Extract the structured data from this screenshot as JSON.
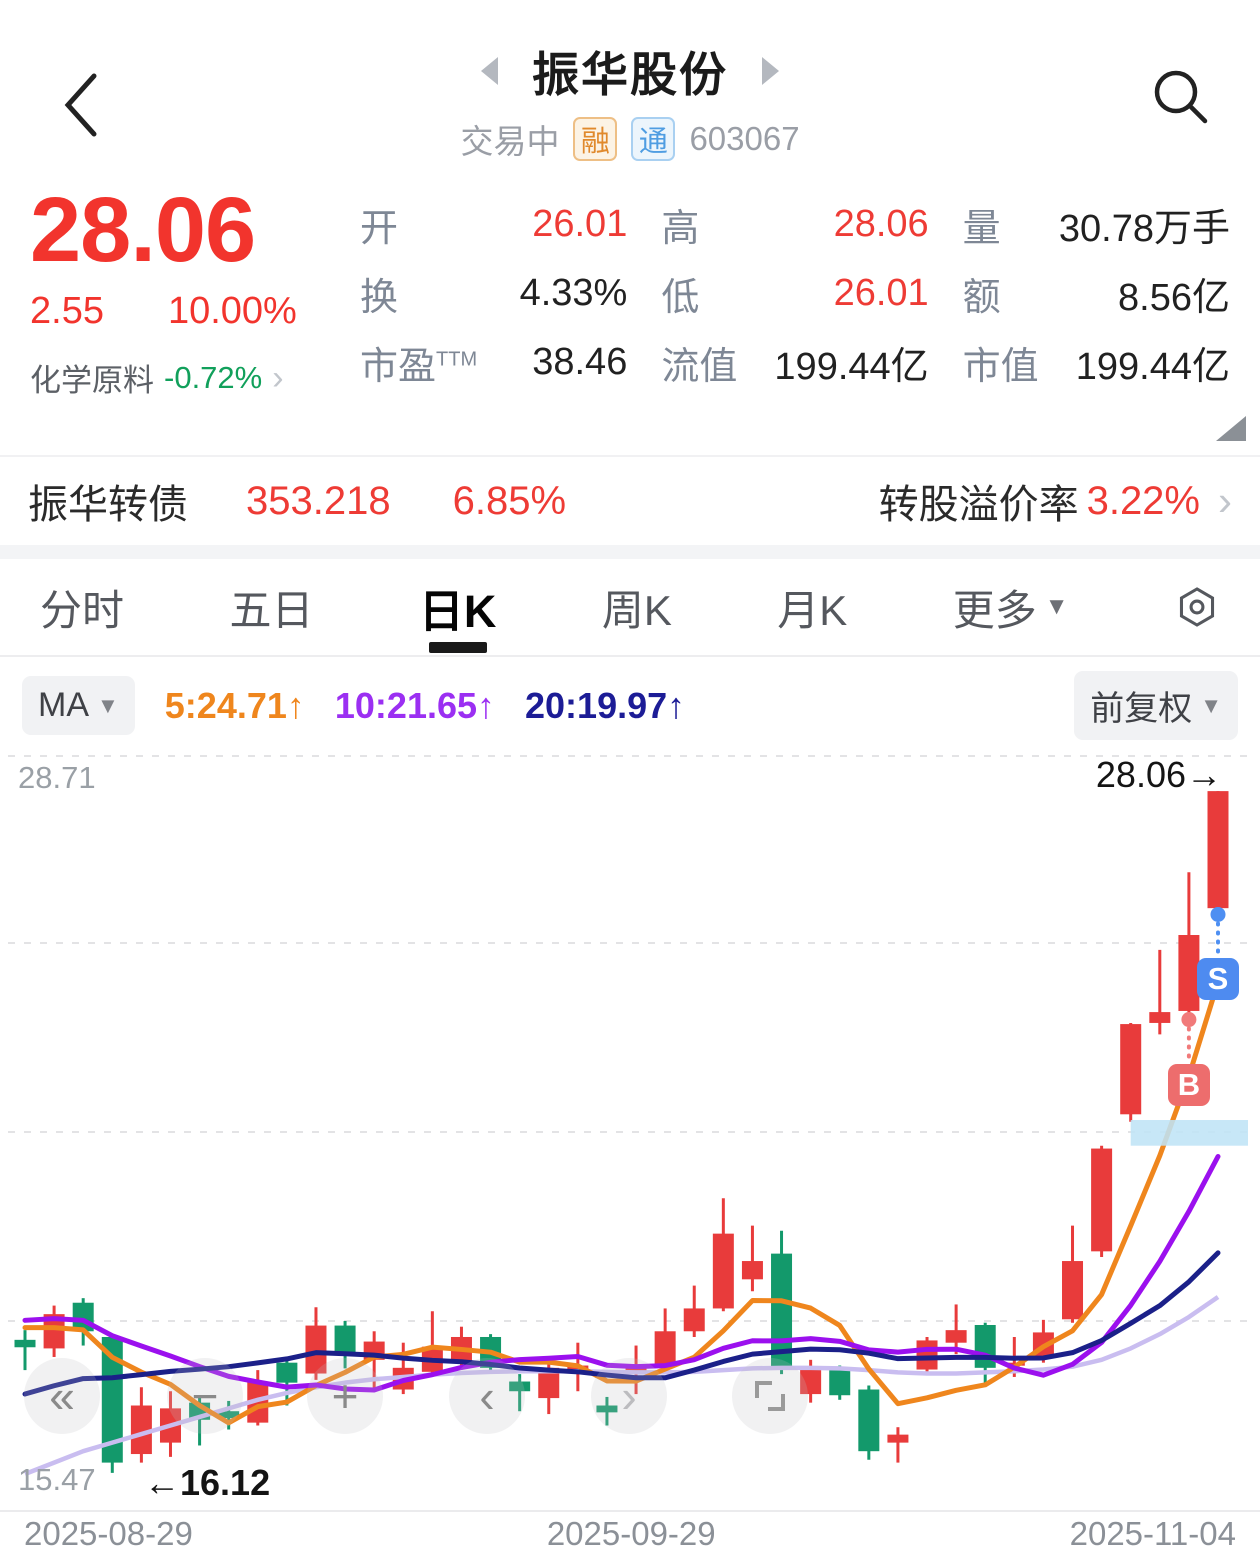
{
  "header": {
    "title": "振华股份",
    "status": "交易中",
    "badge_rong": "融",
    "badge_tong": "通",
    "code": "603067"
  },
  "quote": {
    "price": "28.06",
    "change": "2.55",
    "change_pct": "10.00%",
    "sector": "化学原料",
    "sector_change": "-0.72%",
    "up_color": "#f2342d",
    "down_color": "#11a05b"
  },
  "stats": [
    {
      "label": "开",
      "value": "26.01",
      "color": "red"
    },
    {
      "label": "高",
      "value": "28.06",
      "color": "red"
    },
    {
      "label": "量",
      "value": "30.78万手",
      "color": "black"
    },
    {
      "label": "换",
      "value": "4.33%",
      "color": "black"
    },
    {
      "label": "低",
      "value": "26.01",
      "color": "red"
    },
    {
      "label": "额",
      "value": "8.56亿",
      "color": "black"
    },
    {
      "label": "市盈",
      "sup": "TTM",
      "value": "38.46",
      "color": "black"
    },
    {
      "label": "流值",
      "value": "199.44亿",
      "color": "black"
    },
    {
      "label": "市值",
      "value": "199.44亿",
      "color": "black"
    }
  ],
  "bond": {
    "name": "振华转债",
    "price": "353.218",
    "change_pct": "6.85%",
    "premium_label": "转股溢价率",
    "premium_value": "3.22%"
  },
  "tabs": [
    {
      "label": "分时",
      "active": false
    },
    {
      "label": "五日",
      "active": false
    },
    {
      "label": "日K",
      "active": true
    },
    {
      "label": "周K",
      "active": false
    },
    {
      "label": "月K",
      "active": false
    },
    {
      "label": "更多",
      "active": false,
      "dropdown": true
    }
  ],
  "ma_bar": {
    "ma_label": "MA",
    "items": [
      {
        "text": "5:24.71↑",
        "color": "#ef861d"
      },
      {
        "text": "10:21.65↑",
        "color": "#9b2ff2"
      },
      {
        "text": "20:19.97↑",
        "color": "#1c1c96"
      }
    ],
    "adjust_label": "前复权"
  },
  "chart_buttons": [
    {
      "name": "rewind",
      "glyph": "«"
    },
    {
      "name": "zoom-out",
      "glyph": "−"
    },
    {
      "name": "zoom-in",
      "glyph": "+"
    },
    {
      "name": "pan-left",
      "glyph": "‹"
    },
    {
      "name": "pan-right",
      "glyph": "›"
    },
    {
      "name": "fullscreen",
      "glyph": ""
    }
  ],
  "chart_data": {
    "type": "candlestick",
    "title": "日K 前复权",
    "y_axis": {
      "min": 15.47,
      "max": 28.71,
      "gridlines": [
        28.71,
        25.4,
        22.09,
        18.78
      ],
      "grid": "dashed"
    },
    "y_label_top": "28.71",
    "y_label_bottom": "15.47",
    "annotation_last_price": "28.06→",
    "annotation_low": "←16.12",
    "x_dates": [
      "2025-08-29",
      "2025-09-29",
      "2025-11-04"
    ],
    "up_color": "#e83b3b",
    "down_color": "#13996b",
    "candles": [
      [
        18.45,
        18.62,
        17.92,
        18.32
      ],
      [
        18.3,
        19.05,
        18.15,
        18.9
      ],
      [
        19.1,
        19.18,
        18.35,
        18.6
      ],
      [
        18.5,
        18.55,
        16.12,
        16.3
      ],
      [
        16.45,
        17.62,
        16.3,
        17.3
      ],
      [
        16.65,
        17.55,
        16.4,
        17.25
      ],
      [
        17.35,
        17.48,
        16.6,
        17.05
      ],
      [
        17.2,
        17.38,
        16.88,
        17.08
      ],
      [
        17.0,
        17.92,
        16.95,
        17.72
      ],
      [
        18.05,
        18.12,
        17.3,
        17.7
      ],
      [
        17.86,
        19.02,
        17.75,
        18.7
      ],
      [
        18.7,
        18.78,
        17.95,
        18.2
      ],
      [
        18.1,
        18.6,
        17.6,
        18.42
      ],
      [
        17.58,
        18.4,
        17.5,
        17.96
      ],
      [
        17.89,
        18.95,
        17.8,
        18.33
      ],
      [
        18.04,
        18.68,
        17.95,
        18.5
      ],
      [
        18.5,
        18.55,
        17.9,
        17.96
      ],
      [
        17.72,
        17.85,
        17.2,
        17.55
      ],
      [
        17.43,
        18.02,
        17.15,
        17.96
      ],
      [
        17.92,
        18.4,
        17.55,
        18.0
      ],
      [
        17.3,
        17.45,
        16.95,
        17.18
      ],
      [
        17.85,
        18.35,
        17.5,
        17.95
      ],
      [
        18.0,
        19.0,
        17.9,
        18.6
      ],
      [
        18.6,
        19.4,
        18.5,
        19.0
      ],
      [
        19.0,
        20.93,
        18.95,
        20.31
      ],
      [
        19.51,
        20.45,
        19.3,
        19.83
      ],
      [
        19.96,
        20.36,
        17.85,
        17.93
      ],
      [
        17.5,
        18.1,
        17.35,
        17.96
      ],
      [
        17.96,
        18.0,
        17.4,
        17.48
      ],
      [
        17.58,
        17.65,
        16.35,
        16.5
      ],
      [
        16.65,
        16.92,
        16.3,
        16.79
      ],
      [
        17.93,
        18.5,
        17.85,
        18.44
      ],
      [
        18.4,
        19.07,
        18.2,
        18.62
      ],
      [
        18.71,
        18.75,
        17.7,
        17.96
      ],
      [
        18.0,
        18.5,
        17.8,
        18.05
      ],
      [
        18.16,
        18.8,
        18.05,
        18.58
      ],
      [
        18.81,
        20.45,
        18.75,
        19.83
      ],
      [
        20.0,
        21.85,
        19.9,
        21.8
      ],
      [
        22.4,
        24.0,
        22.27,
        23.98
      ],
      [
        24.0,
        25.28,
        23.8,
        24.19
      ],
      [
        24.21,
        26.64,
        24.07,
        25.54
      ],
      [
        26.01,
        28.06,
        26.01,
        28.06
      ]
    ],
    "ma_series": [
      {
        "name": "MA5",
        "period": 5,
        "color": "#ef861d",
        "last_value": 24.71
      },
      {
        "name": "MA10",
        "period": 10,
        "color": "#9b10ee",
        "last_value": 21.65
      },
      {
        "name": "MA20",
        "period": 20,
        "color": "#1b2089",
        "last_value": 19.97
      }
    ],
    "ma_seed_closes": [
      16.0,
      16.1,
      16.0,
      16.2,
      16.1,
      16.3,
      16.2,
      16.4,
      16.3,
      16.5,
      18.6,
      18.9,
      19.0,
      19.1,
      19.0,
      18.9,
      18.8,
      18.7,
      18.6
    ],
    "extra_line": {
      "name": "MA30",
      "color": "#c9bdf0",
      "values": [
        16.1,
        16.3,
        16.5,
        16.65,
        16.8,
        16.95,
        17.1,
        17.25,
        17.4,
        17.52,
        17.62,
        17.7,
        17.76,
        17.8,
        17.84,
        17.87,
        17.89,
        17.9,
        17.9,
        17.9,
        17.89,
        17.88,
        17.88,
        17.89,
        17.92,
        17.95,
        17.96,
        17.96,
        17.95,
        17.92,
        17.88,
        17.86,
        17.86,
        17.88,
        17.9,
        17.93,
        17.98,
        18.1,
        18.3,
        18.55,
        18.85,
        19.2
      ]
    },
    "hold_band": {
      "start_index": 38,
      "price_top": 22.3,
      "price_bottom": 21.85,
      "color": "#bfe4f6"
    },
    "markers": [
      {
        "label": "B",
        "index": 40,
        "dot_price": 24.06,
        "color": "#ed6d6d",
        "dot_color": "#f17a7a"
      },
      {
        "label": "S",
        "index": 41,
        "dot_price": 25.9,
        "color": "#4e8bf0",
        "dot_color": "#4e8ff2"
      }
    ]
  },
  "axis": {
    "date_left": "2025-08-29",
    "date_mid": "2025-09-29",
    "date_right": "2025-11-04"
  }
}
